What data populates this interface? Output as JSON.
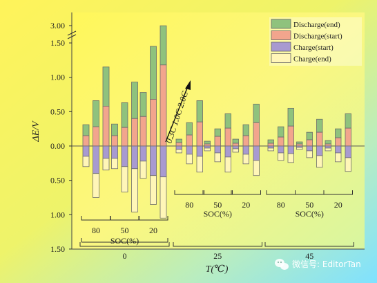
{
  "chart_data": {
    "type": "bar",
    "ylabel": "ΔE/V",
    "xlabel": "T(℃)",
    "y_break_label": "3.00",
    "y_ticks": [
      "1.50",
      "1.00",
      "0.50",
      "0.00",
      "0.50",
      "1.00",
      "1.50"
    ],
    "ylim": [
      -1.5,
      1.5
    ],
    "legend_position": "top-right",
    "legend": [
      {
        "key": "discharge_end",
        "label": "Discharge(end)",
        "color": "#8fc27d"
      },
      {
        "key": "discharge_start",
        "label": "Discharge(start)",
        "color": "#f2a58d"
      },
      {
        "key": "charge_start",
        "label": "Charge(start)",
        "color": "#a89ad0"
      },
      {
        "key": "charge_end",
        "label": "Charge(end)",
        "color": "#fff6b8"
      }
    ],
    "rate_annotation": "0.3C 1.0C 2.0C",
    "soc_label": "SOC(%)",
    "groups": [
      {
        "temperature": "0",
        "soc": [
          {
            "soc": "80",
            "bars": [
              {
                "discharge_start": 0.15,
                "discharge_end": 0.31,
                "charge_start": 0.15,
                "charge_end": 0.3
              },
              {
                "discharge_start": 0.28,
                "discharge_end": 0.66,
                "charge_start": 0.4,
                "charge_end": 0.75
              },
              {
                "discharge_start": 0.58,
                "discharge_end": 1.15,
                "charge_start": 0.18,
                "charge_end": 0.35
              }
            ]
          },
          {
            "soc": "50",
            "bars": [
              {
                "discharge_start": 0.15,
                "discharge_end": 0.32,
                "charge_start": 0.18,
                "charge_end": 0.33
              },
              {
                "discharge_start": 0.27,
                "discharge_end": 0.63,
                "charge_start": 0.3,
                "charge_end": 0.67
              },
              {
                "discharge_start": 0.4,
                "discharge_end": 0.93,
                "charge_start": 0.33,
                "charge_end": 0.96
              }
            ]
          },
          {
            "soc": "20",
            "bars": [
              {
                "discharge_start": 0.43,
                "discharge_end": 0.78,
                "charge_start": 0.22,
                "charge_end": 0.47
              },
              {
                "discharge_start": 0.68,
                "discharge_end": 1.45,
                "charge_start": 0.43,
                "charge_end": 0.85
              },
              {
                "discharge_start": 1.18,
                "discharge_end": 1.75,
                "charge_start": 0.45,
                "charge_end": 1.05
              }
            ]
          }
        ]
      },
      {
        "temperature": "25",
        "soc": [
          {
            "soc": "80",
            "bars": [
              {
                "discharge_start": 0.05,
                "discharge_end": 0.1,
                "charge_start": 0.05,
                "charge_end": 0.1
              },
              {
                "discharge_start": 0.16,
                "discharge_end": 0.34,
                "charge_start": 0.12,
                "charge_end": 0.26
              },
              {
                "discharge_start": 0.35,
                "discharge_end": 0.66,
                "charge_start": 0.15,
                "charge_end": 0.38
              }
            ]
          },
          {
            "soc": "50",
            "bars": [
              {
                "discharge_start": 0.03,
                "discharge_end": 0.07,
                "charge_start": 0.03,
                "charge_end": 0.07
              },
              {
                "discharge_start": 0.14,
                "discharge_end": 0.25,
                "charge_start": 0.1,
                "charge_end": 0.23
              },
              {
                "discharge_start": 0.26,
                "discharge_end": 0.47,
                "charge_start": 0.16,
                "charge_end": 0.38
              }
            ]
          },
          {
            "soc": "20",
            "bars": [
              {
                "discharge_start": 0.04,
                "discharge_end": 0.1,
                "charge_start": 0.04,
                "charge_end": 0.09
              },
              {
                "discharge_start": 0.15,
                "discharge_end": 0.31,
                "charge_start": 0.12,
                "charge_end": 0.26
              },
              {
                "discharge_start": 0.34,
                "discharge_end": 0.61,
                "charge_start": 0.21,
                "charge_end": 0.43
              }
            ]
          }
        ]
      },
      {
        "temperature": "45",
        "soc": [
          {
            "soc": "80",
            "bars": [
              {
                "discharge_start": 0.04,
                "discharge_end": 0.09,
                "charge_start": 0.03,
                "charge_end": 0.07
              },
              {
                "discharge_start": 0.13,
                "discharge_end": 0.28,
                "charge_start": 0.1,
                "charge_end": 0.21
              },
              {
                "discharge_start": 0.29,
                "discharge_end": 0.55,
                "charge_start": 0.11,
                "charge_end": 0.24
              }
            ]
          },
          {
            "soc": "50",
            "bars": [
              {
                "discharge_start": 0.03,
                "discharge_end": 0.06,
                "charge_start": 0.02,
                "charge_end": 0.05
              },
              {
                "discharge_start": 0.09,
                "discharge_end": 0.2,
                "charge_start": 0.07,
                "charge_end": 0.17
              },
              {
                "discharge_start": 0.2,
                "discharge_end": 0.39,
                "charge_start": 0.14,
                "charge_end": 0.31
              }
            ]
          },
          {
            "soc": "20",
            "bars": [
              {
                "discharge_start": 0.03,
                "discharge_end": 0.08,
                "charge_start": 0.03,
                "charge_end": 0.07
              },
              {
                "discharge_start": 0.12,
                "discharge_end": 0.25,
                "charge_start": 0.1,
                "charge_end": 0.23
              },
              {
                "discharge_start": 0.26,
                "discharge_end": 0.47,
                "charge_start": 0.17,
                "charge_end": 0.37
              }
            ]
          }
        ]
      }
    ]
  },
  "watermark": {
    "icon": "wechat-icon",
    "text": "微信号: EditorTan"
  }
}
